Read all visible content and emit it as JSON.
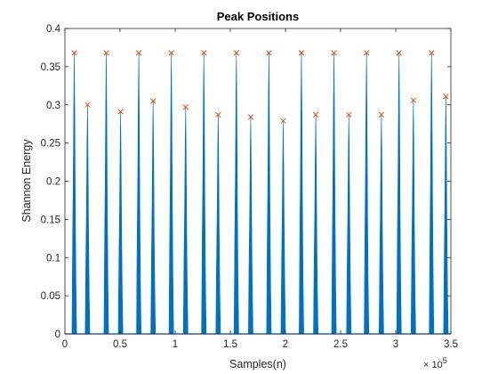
{
  "chart_data": {
    "type": "line",
    "title": "Peak Positions",
    "xlabel": "Samples(n)",
    "ylabel": "Shannon Energy",
    "xlim": [
      0,
      350000
    ],
    "ylim": [
      0,
      0.4
    ],
    "x_ticks": [
      0,
      50000,
      100000,
      150000,
      200000,
      250000,
      300000,
      350000
    ],
    "x_tick_labels": [
      "0",
      "0.5",
      "1",
      "1.5",
      "2",
      "2.5",
      "3",
      "3.5"
    ],
    "x_exponent_base": "× 10",
    "x_exponent_power": "5",
    "y_ticks": [
      0,
      0.05,
      0.1,
      0.15,
      0.2,
      0.25,
      0.3,
      0.35,
      0.4
    ],
    "y_tick_labels": [
      "0",
      "0.05",
      "0.1",
      "0.15",
      "0.2",
      "0.25",
      "0.3",
      "0.35",
      "0.4"
    ],
    "grid": false,
    "series": [
      {
        "name": "Shannon Energy",
        "color": "#0072BD",
        "style": "line"
      },
      {
        "name": "Peaks",
        "color": "#D95319",
        "style": "x-marker",
        "x": [
          8500,
          20500,
          37500,
          50500,
          67000,
          80000,
          96500,
          109500,
          126000,
          139000,
          155500,
          168500,
          185000,
          198000,
          214500,
          227500,
          244000,
          257500,
          273500,
          287000,
          303000,
          316000,
          332500,
          345500
        ],
        "y": [
          0.368,
          0.3,
          0.368,
          0.291,
          0.368,
          0.305,
          0.368,
          0.297,
          0.368,
          0.287,
          0.368,
          0.284,
          0.368,
          0.279,
          0.368,
          0.287,
          0.368,
          0.287,
          0.368,
          0.287,
          0.368,
          0.306,
          0.368,
          0.311
        ]
      }
    ]
  }
}
